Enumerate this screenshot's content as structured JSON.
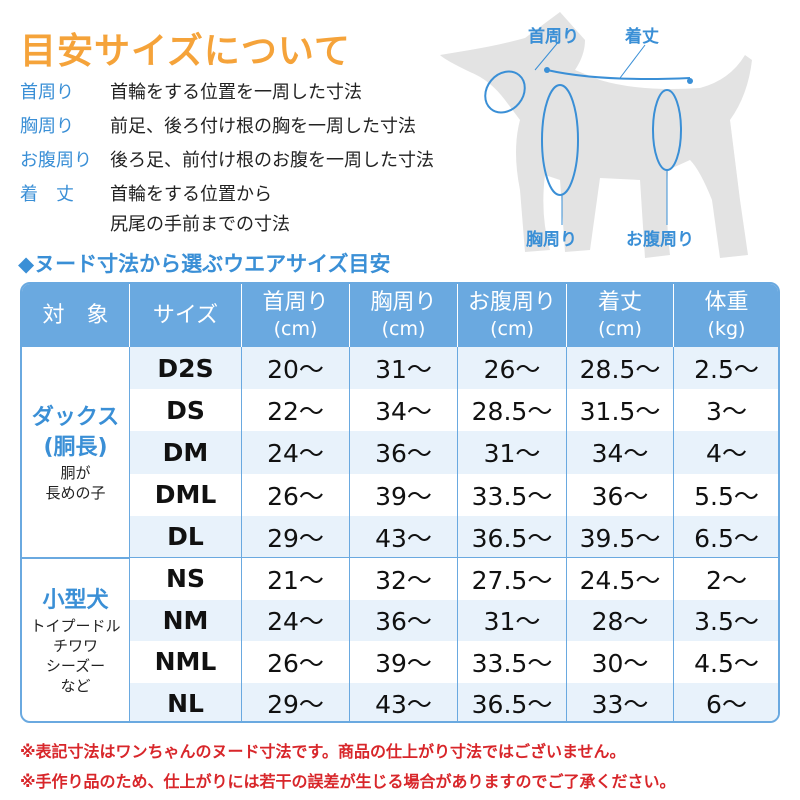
{
  "title": "目安サイズについて",
  "definitions": [
    {
      "term": "首周り",
      "desc": [
        "首輪をする位置を一周した寸法"
      ]
    },
    {
      "term": "胸周り",
      "desc": [
        "前足、後ろ付け根の胸を一周した寸法"
      ]
    },
    {
      "term": "お腹周り",
      "desc": [
        "後ろ足、前付け根のお腹を一周した寸法"
      ]
    },
    {
      "term": "着　丈",
      "desc": [
        "首輪をする位置から",
        "尻尾の手前までの寸法"
      ]
    }
  ],
  "diagram": {
    "neck": "首周り",
    "length": "着丈",
    "chest": "胸周り",
    "belly": "お腹周り"
  },
  "subtitle": "◆ヌード寸法から選ぶウエアサイズ目安",
  "table": {
    "headers": [
      {
        "label": "対　象",
        "unit": ""
      },
      {
        "label": "サイズ",
        "unit": ""
      },
      {
        "label": "首周り",
        "unit": "(cm)"
      },
      {
        "label": "胸周り",
        "unit": "(cm)"
      },
      {
        "label": "お腹周り",
        "unit": "(cm)"
      },
      {
        "label": "着丈",
        "unit": "(cm)"
      },
      {
        "label": "体重",
        "unit": "(kg)"
      }
    ],
    "groups": [
      {
        "main": [
          "ダックス",
          "(胴長)"
        ],
        "sub": [
          "胴が",
          "長めの子"
        ],
        "rows": [
          [
            "D2S",
            "20〜",
            "31〜",
            "26〜",
            "28.5〜",
            "2.5〜"
          ],
          [
            "DS",
            "22〜",
            "34〜",
            "28.5〜",
            "31.5〜",
            "3〜"
          ],
          [
            "DM",
            "24〜",
            "36〜",
            "31〜",
            "34〜",
            "4〜"
          ],
          [
            "DML",
            "26〜",
            "39〜",
            "33.5〜",
            "36〜",
            "5.5〜"
          ],
          [
            "DL",
            "29〜",
            "43〜",
            "36.5〜",
            "39.5〜",
            "6.5〜"
          ]
        ]
      },
      {
        "main": [
          "小型犬"
        ],
        "sub": [
          "トイプードル",
          "チワワ",
          "シーズー",
          "など"
        ],
        "rows": [
          [
            "NS",
            "21〜",
            "32〜",
            "27.5〜",
            "24.5〜",
            "2〜"
          ],
          [
            "NM",
            "24〜",
            "36〜",
            "31〜",
            "28〜",
            "3.5〜"
          ],
          [
            "NML",
            "26〜",
            "39〜",
            "33.5〜",
            "30〜",
            "4.5〜"
          ],
          [
            "NL",
            "29〜",
            "43〜",
            "36.5〜",
            "33〜",
            "6〜"
          ]
        ]
      }
    ]
  },
  "notes": [
    "※表記寸法はワンちゃんのヌード寸法です。商品の仕上がり寸法ではございません。",
    "※手作り品のため、仕上がりには若干の誤差が生じる場合がありますのでご了承ください。"
  ],
  "colors": {
    "title": "#f5a33a",
    "accent": "#3a8fd6",
    "header": "#6aa9e0",
    "row_alt": "#e8f2fb",
    "note": "#d8262a",
    "dog": "#e3e3e3"
  }
}
